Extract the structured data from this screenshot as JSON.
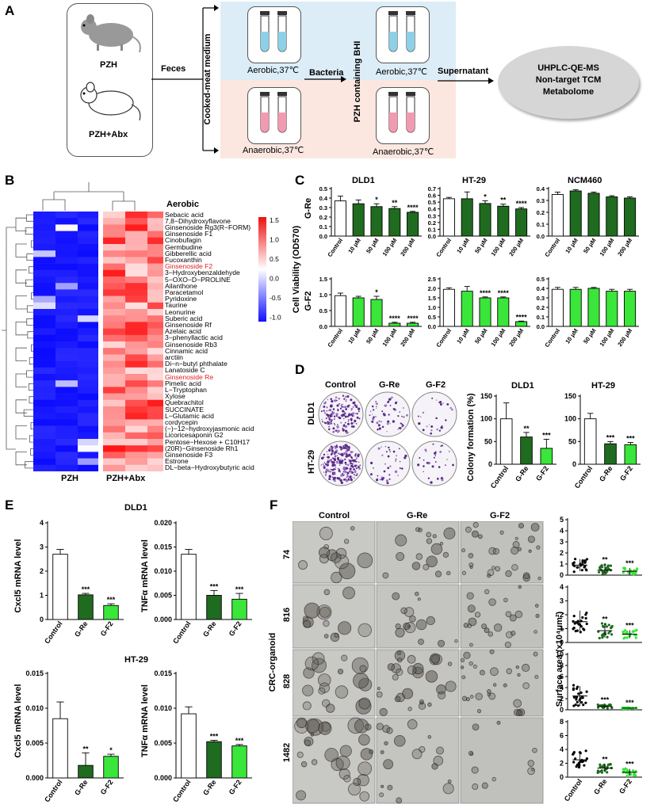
{
  "panels": {
    "A": "A",
    "B": "B",
    "C": "C",
    "D": "D",
    "E": "E",
    "F": "F"
  },
  "panelA": {
    "mouse1": "PZH",
    "mouse2": "PZH+Abx",
    "feces": "Feces",
    "medium": "Cooked-meat medium",
    "bacteria": "Bacteria",
    "bhi": "PZH containing BHI",
    "supernatant": "Supernatant",
    "aerobic1": "Aerobic,37℃",
    "anaerobic1": "Anaerobic,37℃",
    "aerobic2": "Aerobic,37℃",
    "anaerobic2": "Anaerobic,37℃",
    "ellipse": [
      "UHPLC-QE-MS",
      "Non-target TCM",
      "Metabolome"
    ]
  },
  "panelB": {
    "title": "Aerobic",
    "xlabels": [
      "PZH",
      "PZH+Abx"
    ],
    "colorbar_ticks": [
      "1.5",
      "1.0",
      "0.5",
      "0.0",
      "-0.5",
      "-1.0"
    ],
    "rows": [
      "Sebacic acid",
      "7,8−Dihydroxyflavone",
      "Ginsenoside Rg3(R−FORM)",
      "Ginsenoside F1",
      "Cinobufagin",
      "Germbudine",
      "Gibberellic acid",
      "Fucoxanthin",
      "Ginsenoside F2",
      "3−Hydroxybenzaldehyde",
      "5−OXO−D−PROLINE",
      "Ailanthone",
      "Paracetamol",
      "Pyridoxine",
      "Taurine",
      "Leonurine",
      "Suberic acid",
      "Ginsenoside Rf",
      "Azelaic acid",
      "3−phenyllactic acid",
      "Ginsenoside Rb3",
      "Cinnamic acid",
      "arctiin",
      "Di−n−butyl phthalate",
      "Lanatoside C",
      "Ginsenoside Re",
      "Pimelic acid",
      "L−Tryptophan",
      "Xylose",
      "Quebrachitol",
      "SUCCINATE",
      "L−Glutamic acid",
      "cordycepin",
      "(−)−12−hydroxyjasmonic acid",
      "Licoricesaponin G2",
      "Pentose−Hexose + C10H17",
      "(20R)−Ginsenoside Rh1",
      "Ginsenoside F3",
      "Estrone",
      "DL−beta−Hydroxybutyric acid"
    ],
    "highlight": [
      "Ginsenoside F2",
      "Ginsenoside Re"
    ]
  },
  "panelC": {
    "ylabel": "Cell Viability (OD570)",
    "rowlabels": [
      "G-Re",
      "G-F2"
    ],
    "titles": [
      "DLD1",
      "HT-29",
      "NCM460"
    ],
    "categories": [
      "Control",
      "10 μM",
      "50 μM",
      "100 μM",
      "200 μM"
    ]
  },
  "panelD": {
    "cols": [
      "Control",
      "G-Re",
      "G-F2"
    ],
    "rows": [
      "DLD1",
      "HT-29"
    ],
    "ylabel": "Colony formation (%)",
    "titles": [
      "DLD1",
      "HT-29"
    ],
    "categories": [
      "Control",
      "G-Re",
      "G-F2"
    ]
  },
  "panelE": {
    "titles": [
      "DLD1",
      "HT-29"
    ],
    "ylabels": [
      "Cxcl5 mRNA level",
      "TNFα mRNA level"
    ],
    "categories": [
      "Control",
      "G-Re",
      "G-F2"
    ]
  },
  "panelF": {
    "cols": [
      "Control",
      "G-Re",
      "G-F2"
    ],
    "rows": [
      "74",
      "816",
      "828",
      "1482"
    ],
    "sidelabel": "CRC-organoid",
    "ylabel": "Surface area (x10⁴μm²)",
    "categories": [
      "Control",
      "G-Re",
      "G-F2"
    ]
  },
  "chart_data": [
    {
      "id": "C-DLD1-Re",
      "type": "bar",
      "categories": [
        "Control",
        "10 μM",
        "50 μM",
        "100 μM",
        "200 μM"
      ],
      "values": [
        0.37,
        0.34,
        0.31,
        0.29,
        0.25
      ],
      "errors": [
        0.05,
        0.04,
        0.03,
        0.02,
        0.01
      ],
      "ylim": [
        0,
        0.5
      ],
      "yticks": [
        "0.0",
        "0.1",
        "0.2",
        "0.3",
        "0.4",
        "0.5"
      ],
      "ticks": [
        0,
        0.1,
        0.2,
        0.3,
        0.4,
        0.5
      ],
      "sig": [
        "",
        "",
        "*",
        "**",
        "****"
      ],
      "colors": [
        "#ffffff",
        "#1f6b1f",
        "#1f6b1f",
        "#1f6b1f",
        "#1f6b1f"
      ]
    },
    {
      "id": "C-HT29-Re",
      "type": "bar",
      "categories": [
        "Control",
        "10 μM",
        "50 μM",
        "100 μM",
        "200 μM"
      ],
      "values": [
        0.55,
        0.55,
        0.48,
        0.44,
        0.4
      ],
      "errors": [
        0.02,
        0.1,
        0.04,
        0.03,
        0.02
      ],
      "ylim": [
        0,
        0.7
      ],
      "yticks": [
        "0.0",
        "0.1",
        "0.2",
        "0.3",
        "0.4",
        "0.5",
        "0.6",
        "0.7"
      ],
      "ticks": [
        0,
        0.1,
        0.2,
        0.3,
        0.4,
        0.5,
        0.6,
        0.7
      ],
      "sig": [
        "",
        "",
        "*",
        "**",
        "****"
      ],
      "colors": [
        "#ffffff",
        "#1f6b1f",
        "#1f6b1f",
        "#1f6b1f",
        "#1f6b1f"
      ]
    },
    {
      "id": "C-NCM-Re",
      "type": "bar",
      "categories": [
        "Control",
        "10 μM",
        "50 μM",
        "100 μM",
        "200 μM"
      ],
      "values": [
        0.35,
        0.38,
        0.36,
        0.33,
        0.32
      ],
      "errors": [
        0.02,
        0.01,
        0.01,
        0.01,
        0.01
      ],
      "ylim": [
        0,
        0.4
      ],
      "yticks": [
        "0.0",
        "0.1",
        "0.2",
        "0.3",
        "0.4"
      ],
      "ticks": [
        0,
        0.1,
        0.2,
        0.3,
        0.4
      ],
      "sig": [
        "",
        "",
        "",
        "",
        ""
      ],
      "colors": [
        "#ffffff",
        "#1f6b1f",
        "#1f6b1f",
        "#1f6b1f",
        "#1f6b1f"
      ]
    },
    {
      "id": "C-DLD1-F2",
      "type": "bar",
      "categories": [
        "Control",
        "10 μM",
        "50 μM",
        "100 μM",
        "200 μM"
      ],
      "values": [
        0.97,
        0.9,
        0.85,
        0.1,
        0.1
      ],
      "errors": [
        0.08,
        0.05,
        0.1,
        0.03,
        0.03
      ],
      "ylim": [
        0,
        1.5
      ],
      "yticks": [
        "0.0",
        "0.5",
        "1.0",
        "1.5"
      ],
      "ticks": [
        0,
        0.5,
        1.0,
        1.5
      ],
      "sig": [
        "",
        "",
        "*",
        "****",
        "****"
      ],
      "colors": [
        "#ffffff",
        "#39e639",
        "#39e639",
        "#39e639",
        "#39e639"
      ]
    },
    {
      "id": "C-HT29-F2",
      "type": "bar",
      "categories": [
        "Control",
        "10 μM",
        "50 μM",
        "100 μM",
        "200 μM"
      ],
      "values": [
        1.95,
        1.85,
        1.5,
        1.5,
        0.25
      ],
      "errors": [
        0.08,
        0.25,
        0.05,
        0.05,
        0.03
      ],
      "ylim": [
        0,
        2.5
      ],
      "yticks": [
        "0.0",
        "0.5",
        "1.0",
        "1.5",
        "2.0",
        "2.5"
      ],
      "ticks": [
        0,
        0.5,
        1.0,
        1.5,
        2.0,
        2.5
      ],
      "sig": [
        "",
        "",
        "****",
        "****",
        "****"
      ],
      "colors": [
        "#ffffff",
        "#39e639",
        "#39e639",
        "#39e639",
        "#39e639"
      ]
    },
    {
      "id": "C-NCM-F2",
      "type": "bar",
      "categories": [
        "Control",
        "10 μM",
        "50 μM",
        "100 μM",
        "200 μM"
      ],
      "values": [
        0.39,
        0.39,
        0.4,
        0.37,
        0.37
      ],
      "errors": [
        0.02,
        0.02,
        0.01,
        0.02,
        0.02
      ],
      "ylim": [
        0,
        0.5
      ],
      "yticks": [
        "0.0",
        "0.1",
        "0.2",
        "0.3",
        "0.4",
        "0.5"
      ],
      "ticks": [
        0,
        0.1,
        0.2,
        0.3,
        0.4,
        0.5
      ],
      "sig": [
        "",
        "",
        "",
        "",
        ""
      ],
      "colors": [
        "#ffffff",
        "#39e639",
        "#39e639",
        "#39e639",
        "#39e639"
      ]
    },
    {
      "id": "D-DLD1",
      "type": "bar",
      "categories": [
        "Control",
        "G-Re",
        "G-F2"
      ],
      "values": [
        100,
        60,
        35
      ],
      "errors": [
        35,
        10,
        20
      ],
      "ylim": [
        0,
        150
      ],
      "yticks": [
        "0",
        "50",
        "100",
        "150"
      ],
      "ticks": [
        0,
        50,
        100,
        150
      ],
      "sig": [
        "",
        "**",
        "***"
      ],
      "colors": [
        "#ffffff",
        "#1f6b1f",
        "#39e639"
      ]
    },
    {
      "id": "D-HT29",
      "type": "bar",
      "categories": [
        "Control",
        "G-Re",
        "G-F2"
      ],
      "values": [
        100,
        45,
        43
      ],
      "errors": [
        12,
        5,
        5
      ],
      "ylim": [
        0,
        150
      ],
      "yticks": [
        "0",
        "50",
        "100",
        "150"
      ],
      "ticks": [
        0,
        50,
        100,
        150
      ],
      "sig": [
        "",
        "***",
        "***"
      ],
      "colors": [
        "#ffffff",
        "#1f6b1f",
        "#39e639"
      ]
    },
    {
      "id": "E-DLD1-Cxcl5",
      "type": "bar",
      "categories": [
        "Control",
        "G-Re",
        "G-F2"
      ],
      "values": [
        2.7,
        1.02,
        0.58
      ],
      "errors": [
        0.2,
        0.06,
        0.07
      ],
      "ylim": [
        0,
        4
      ],
      "yticks": [
        "0",
        "1",
        "2",
        "3",
        "4"
      ],
      "ticks": [
        0,
        1,
        2,
        3,
        4
      ],
      "sig": [
        "",
        "***",
        "***"
      ],
      "colors": [
        "#ffffff",
        "#1f6b1f",
        "#39e639"
      ]
    },
    {
      "id": "E-DLD1-TNF",
      "type": "bar",
      "categories": [
        "Control",
        "G-Re",
        "G-F2"
      ],
      "values": [
        0.0135,
        0.005,
        0.0042
      ],
      "errors": [
        0.001,
        0.001,
        0.0012
      ],
      "ylim": [
        0,
        0.02
      ],
      "yticks": [
        "0.000",
        "0.005",
        "0.010",
        "0.015",
        "0.020"
      ],
      "ticks": [
        0,
        0.005,
        0.01,
        0.015,
        0.02
      ],
      "sig": [
        "",
        "***",
        "***"
      ],
      "colors": [
        "#ffffff",
        "#1f6b1f",
        "#39e639"
      ]
    },
    {
      "id": "E-HT29-Cxcl5",
      "type": "bar",
      "categories": [
        "Control",
        "G-Re",
        "G-F2"
      ],
      "values": [
        0.0085,
        0.0018,
        0.0031
      ],
      "errors": [
        0.0024,
        0.0018,
        0.0003
      ],
      "ylim": [
        0,
        0.015
      ],
      "yticks": [
        "0.000",
        "0.005",
        "0.010",
        "0.015"
      ],
      "ticks": [
        0,
        0.005,
        0.01,
        0.015
      ],
      "sig": [
        "",
        "**",
        "*"
      ],
      "colors": [
        "#ffffff",
        "#1f6b1f",
        "#39e639"
      ]
    },
    {
      "id": "E-HT29-TNF",
      "type": "bar",
      "categories": [
        "Control",
        "G-Re",
        "G-F2"
      ],
      "values": [
        0.0092,
        0.0052,
        0.0046
      ],
      "errors": [
        0.001,
        0.0002,
        0.0002
      ],
      "ylim": [
        0,
        0.015
      ],
      "yticks": [
        "0.000",
        "0.005",
        "0.010",
        "0.015"
      ],
      "ticks": [
        0,
        0.005,
        0.01,
        0.015
      ],
      "sig": [
        "",
        "***",
        "***"
      ],
      "colors": [
        "#ffffff",
        "#1f6b1f",
        "#39e639"
      ]
    },
    {
      "id": "F-74",
      "type": "scatter",
      "categories": [
        "Control",
        "G-Re",
        "G-F2"
      ],
      "means": [
        0.9,
        0.45,
        0.35
      ],
      "sd": [
        0.55,
        0.5,
        0.3
      ],
      "ylim": [
        0,
        5
      ],
      "yticks": [
        "0",
        "1",
        "2",
        "3",
        "4",
        "5"
      ],
      "ticks": [
        0,
        1,
        2,
        3,
        4,
        5
      ],
      "sig": [
        "",
        "**",
        "***"
      ],
      "colors": [
        "#000000",
        "#1f6b1f",
        "#39e639"
      ]
    },
    {
      "id": "F-816",
      "type": "scatter",
      "categories": [
        "Control",
        "G-Re",
        "G-F2"
      ],
      "means": [
        1.5,
        0.85,
        0.6
      ],
      "sd": [
        0.8,
        0.5,
        0.3
      ],
      "ylim": [
        0,
        4
      ],
      "yticks": [
        "0",
        "1",
        "2",
        "3",
        "4"
      ],
      "ticks": [
        0,
        1,
        2,
        3,
        4
      ],
      "sig": [
        "",
        "**",
        "***"
      ],
      "colors": [
        "#000000",
        "#1f6b1f",
        "#39e639"
      ]
    },
    {
      "id": "F-828",
      "type": "scatter",
      "categories": [
        "Control",
        "G-Re",
        "G-F2"
      ],
      "means": [
        2.5,
        0.6,
        0.3
      ],
      "sd": [
        1.8,
        0.3,
        0.1
      ],
      "ylim": [
        0,
        10
      ],
      "yticks": [
        "0",
        "2",
        "4",
        "6",
        "8",
        "10"
      ],
      "ticks": [
        0,
        2,
        4,
        6,
        8,
        10
      ],
      "sig": [
        "",
        "***",
        "***"
      ],
      "colors": [
        "#000000",
        "#1f6b1f",
        "#39e639"
      ]
    },
    {
      "id": "F-1482",
      "type": "scatter",
      "categories": [
        "Control",
        "G-Re",
        "G-F2"
      ],
      "means": [
        2.5,
        1.3,
        0.7
      ],
      "sd": [
        1.2,
        0.6,
        0.5
      ],
      "ylim": [
        0,
        8
      ],
      "yticks": [
        "0",
        "2",
        "4",
        "6",
        "8"
      ],
      "ticks": [
        0,
        2,
        4,
        6,
        8
      ],
      "sig": [
        "",
        "**",
        "***"
      ],
      "colors": [
        "#000000",
        "#1f6b1f",
        "#39e639"
      ]
    }
  ]
}
